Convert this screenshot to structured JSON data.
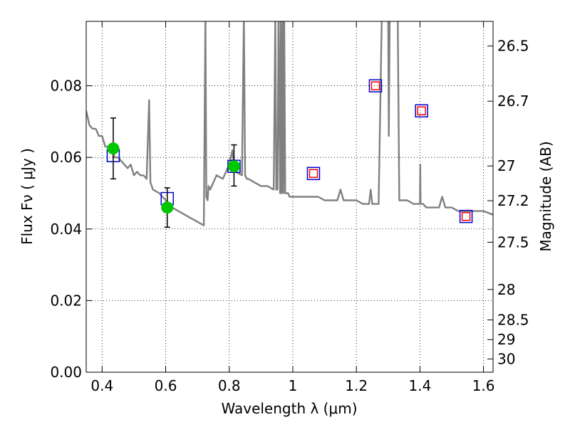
{
  "chart_data": {
    "type": "scatter",
    "xlabel": "Wavelength  λ (μm)",
    "ylabel": "Flux  Fν  ( μJy )",
    "ylabel_right": "Magnitude (AB)",
    "xlim": [
      0.35,
      1.63
    ],
    "ylim": [
      0.0,
      0.098
    ],
    "grid": true,
    "x_ticks": [
      0.4,
      0.6,
      0.8,
      1.0,
      1.2,
      1.4,
      1.6
    ],
    "x_tick_labels": [
      "0.4",
      "0.6",
      "0.8",
      "1",
      "1.2",
      "1.4",
      "1.6"
    ],
    "y_ticks": [
      0.0,
      0.02,
      0.04,
      0.06,
      0.08
    ],
    "y_tick_labels": [
      "0.00",
      "0.02",
      "0.04",
      "0.06",
      "0.08"
    ],
    "right_ticks_flux": [
      0.0911,
      0.0757,
      0.0576,
      0.0479,
      0.0363,
      0.0231,
      0.0146,
      0.0091,
      0.0037
    ],
    "right_tick_labels": [
      "26.5",
      "26.7",
      "27",
      "27.2",
      "27.5",
      "28",
      "28.5",
      "29",
      "30"
    ],
    "series": [
      {
        "type": "line",
        "color": "#808080",
        "x": [
          0.35,
          0.36,
          0.37,
          0.38,
          0.39,
          0.4,
          0.41,
          0.42,
          0.43,
          0.44,
          0.45,
          0.46,
          0.47,
          0.48,
          0.49,
          0.5,
          0.51,
          0.52,
          0.53,
          0.54,
          0.548,
          0.552,
          0.556,
          0.56,
          0.58,
          0.6,
          0.62,
          0.64,
          0.66,
          0.68,
          0.7,
          0.72,
          0.725,
          0.728,
          0.732,
          0.735,
          0.74,
          0.76,
          0.78,
          0.8,
          0.81,
          0.815,
          0.82,
          0.84,
          0.846,
          0.85,
          0.855,
          0.86,
          0.88,
          0.9,
          0.92,
          0.94,
          0.945,
          0.948,
          0.952,
          0.955,
          0.96,
          0.962,
          0.965,
          0.968,
          0.97,
          0.973,
          0.976,
          0.98,
          0.985,
          0.99,
          1.0,
          1.02,
          1.04,
          1.06,
          1.08,
          1.1,
          1.12,
          1.14,
          1.15,
          1.16,
          1.18,
          1.2,
          1.22,
          1.24,
          1.245,
          1.25,
          1.26,
          1.27,
          1.28,
          1.3,
          1.302,
          1.305,
          1.31,
          1.32,
          1.33,
          1.335,
          1.34,
          1.36,
          1.38,
          1.4,
          1.401,
          1.402,
          1.403,
          1.404,
          1.41,
          1.42,
          1.44,
          1.46,
          1.47,
          1.48,
          1.5,
          1.52,
          1.54,
          1.56,
          1.58,
          1.6,
          1.63
        ],
        "y": [
          0.073,
          0.069,
          0.068,
          0.068,
          0.066,
          0.066,
          0.063,
          0.063,
          0.062,
          0.06,
          0.06,
          0.059,
          0.058,
          0.057,
          0.058,
          0.055,
          0.056,
          0.055,
          0.055,
          0.054,
          0.076,
          0.053,
          0.052,
          0.051,
          0.05,
          0.048,
          0.046,
          0.045,
          0.044,
          0.043,
          0.042,
          0.041,
          0.1,
          0.049,
          0.048,
          0.052,
          0.051,
          0.055,
          0.054,
          0.058,
          0.062,
          0.058,
          0.056,
          0.055,
          0.1,
          0.055,
          0.054,
          0.054,
          0.053,
          0.052,
          0.052,
          0.051,
          0.1,
          0.051,
          0.051,
          0.1,
          0.05,
          0.1,
          0.05,
          0.1,
          0.05,
          0.1,
          0.05,
          0.05,
          0.05,
          0.049,
          0.049,
          0.049,
          0.049,
          0.049,
          0.049,
          0.048,
          0.048,
          0.048,
          0.051,
          0.048,
          0.048,
          0.048,
          0.047,
          0.047,
          0.051,
          0.047,
          0.047,
          0.047,
          0.1,
          0.1,
          0.066,
          0.1,
          0.1,
          0.1,
          0.1,
          0.048,
          0.048,
          0.048,
          0.047,
          0.047,
          0.058,
          0.047,
          0.047,
          0.047,
          0.047,
          0.046,
          0.046,
          0.046,
          0.049,
          0.046,
          0.046,
          0.045,
          0.045,
          0.045,
          0.045,
          0.045,
          0.044
        ]
      },
      {
        "type": "scatter",
        "marker": "square",
        "color": "#0000cc",
        "x": [
          0.435,
          0.605,
          0.815,
          1.065,
          1.26,
          1.405,
          1.545
        ],
        "y": [
          0.0605,
          0.0485,
          0.0575,
          0.0555,
          0.08,
          0.073,
          0.0435
        ]
      },
      {
        "type": "scatter",
        "marker": "square",
        "color": "#ff0000",
        "x": [
          1.065,
          1.26,
          1.405,
          1.545
        ],
        "y": [
          0.0555,
          0.08,
          0.073,
          0.0435
        ]
      },
      {
        "type": "scatter",
        "marker": "circle",
        "color": "#00c800",
        "x": [
          0.435,
          0.605,
          0.815
        ],
        "y": [
          0.0625,
          0.046,
          0.0575
        ],
        "err_low": [
          0.054,
          0.0405,
          0.052
        ],
        "err_high": [
          0.071,
          0.0515,
          0.0635
        ]
      }
    ]
  }
}
